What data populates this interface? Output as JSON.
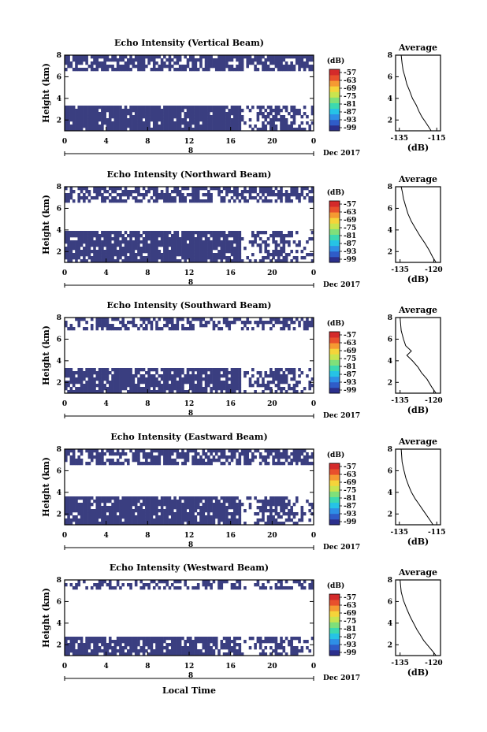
{
  "xlabel": "Local Time",
  "colorbar": {
    "unit": "(dB)",
    "ticks": [
      "-57",
      "-63",
      "-69",
      "-75",
      "-81",
      "-87",
      "-93",
      "-99"
    ],
    "colors": [
      "#2b2f8c",
      "#2f5cc8",
      "#2e8fe6",
      "#26c3e6",
      "#3cd9b0",
      "#7fe07a",
      "#c9e44f",
      "#f5d43a",
      "#f59a32",
      "#e8502c",
      "#d42a2a"
    ]
  },
  "data_color": "#3a3e80",
  "average_title": "Average",
  "average_xlabel": "(dB)",
  "chart_data": [
    {
      "type": "heatmap",
      "title": "Echo Intensity (Vertical Beam)",
      "ylabel": "Height (km)",
      "x_ticks": [
        "0",
        "4",
        "8",
        "12",
        "16",
        "20",
        "0"
      ],
      "date_label": "Dec 2017",
      "day_marker": "8",
      "xlim": [
        0,
        24
      ],
      "ylim": [
        1,
        8
      ],
      "y_ticks": [
        "8",
        "6",
        "4",
        "2"
      ],
      "layers": [
        {
          "low": 1.0,
          "high": 3.4,
          "density": 0.93
        },
        {
          "low": 6.6,
          "high": 8.0,
          "density": 0.75
        }
      ],
      "average": {
        "x_ticks": [
          "-135",
          "-115"
        ],
        "xlim": [
          -137,
          -113
        ],
        "ylim": [
          1,
          8
        ],
        "profile": [
          [
            -118,
            1.0
          ],
          [
            -119.5,
            1.4
          ],
          [
            -121,
            1.8
          ],
          [
            -123,
            2.3
          ],
          [
            -124.5,
            2.8
          ],
          [
            -126,
            3.4
          ],
          [
            -128,
            4.0
          ],
          [
            -129.5,
            4.7
          ],
          [
            -131,
            5.3
          ],
          [
            -132,
            6.0
          ],
          [
            -133,
            6.6
          ],
          [
            -133.5,
            7.2
          ],
          [
            -134,
            8.0
          ]
        ]
      }
    },
    {
      "type": "heatmap",
      "title": "Echo Intensity (Northward Beam)",
      "ylabel": "Height (km)",
      "x_ticks": [
        "0",
        "4",
        "8",
        "12",
        "16",
        "20",
        "0"
      ],
      "date_label": "Dec 2017",
      "day_marker": "8",
      "xlim": [
        0,
        24
      ],
      "ylim": [
        1,
        8
      ],
      "y_ticks": [
        "8",
        "6",
        "4",
        "2"
      ],
      "layers": [
        {
          "low": 1.0,
          "high": 3.8,
          "density": 0.88
        },
        {
          "low": 6.4,
          "high": 8.0,
          "density": 0.65
        }
      ],
      "average": {
        "x_ticks": [
          "-135",
          "-120"
        ],
        "xlim": [
          -137,
          -117
        ],
        "ylim": [
          1,
          8
        ],
        "profile": [
          [
            -119,
            1.0
          ],
          [
            -120.5,
            1.5
          ],
          [
            -122,
            2.1
          ],
          [
            -124,
            2.8
          ],
          [
            -126,
            3.4
          ],
          [
            -128,
            4.1
          ],
          [
            -130,
            4.8
          ],
          [
            -131.5,
            5.5
          ],
          [
            -132.5,
            6.2
          ],
          [
            -133.5,
            6.9
          ],
          [
            -134,
            7.5
          ],
          [
            -134.5,
            8.0
          ]
        ]
      }
    },
    {
      "type": "heatmap",
      "title": "Echo Intensity (Southward Beam)",
      "ylabel": "Height (km)",
      "x_ticks": [
        "0",
        "4",
        "8",
        "12",
        "16",
        "20",
        "0"
      ],
      "date_label": "Dec 2017",
      "day_marker": "8",
      "xlim": [
        0,
        24
      ],
      "ylim": [
        1,
        8
      ],
      "y_ticks": [
        "8",
        "6",
        "4",
        "2"
      ],
      "layers": [
        {
          "low": 1.0,
          "high": 3.3,
          "density": 0.85
        },
        {
          "low": 6.8,
          "high": 8.0,
          "density": 0.55
        }
      ],
      "average": {
        "x_ticks": [
          "-135",
          "-120"
        ],
        "xlim": [
          -137,
          -117
        ],
        "ylim": [
          1,
          8
        ],
        "profile": [
          [
            -119,
            1.0
          ],
          [
            -121,
            1.6
          ],
          [
            -123,
            2.3
          ],
          [
            -125.5,
            2.9
          ],
          [
            -127,
            3.4
          ],
          [
            -129.5,
            4.0
          ],
          [
            -132,
            4.5
          ],
          [
            -130,
            4.9
          ],
          [
            -132.5,
            5.4
          ],
          [
            -133.5,
            6.0
          ],
          [
            -134.5,
            6.8
          ],
          [
            -135,
            8.0
          ]
        ]
      }
    },
    {
      "type": "heatmap",
      "title": "Echo Intensity (Eastward Beam)",
      "ylabel": "Height (km)",
      "x_ticks": [
        "0",
        "4",
        "8",
        "12",
        "16",
        "20",
        "0"
      ],
      "date_label": "Dec 2017",
      "day_marker": "8",
      "xlim": [
        0,
        24
      ],
      "ylim": [
        1,
        8
      ],
      "y_ticks": [
        "8",
        "6",
        "4",
        "2"
      ],
      "layers": [
        {
          "low": 1.0,
          "high": 3.6,
          "density": 0.9
        },
        {
          "low": 6.6,
          "high": 8.0,
          "density": 0.7
        }
      ],
      "average": {
        "x_ticks": [
          "-135",
          "-115"
        ],
        "xlim": [
          -137,
          -113
        ],
        "ylim": [
          1,
          8
        ],
        "profile": [
          [
            -117,
            1.0
          ],
          [
            -118.5,
            1.4
          ],
          [
            -120.5,
            1.9
          ],
          [
            -122.5,
            2.4
          ],
          [
            -124.5,
            2.9
          ],
          [
            -126.5,
            3.4
          ],
          [
            -128.5,
            4.0
          ],
          [
            -130,
            4.6
          ],
          [
            -131.5,
            5.3
          ],
          [
            -132.5,
            6.0
          ],
          [
            -133.5,
            6.8
          ],
          [
            -134,
            8.0
          ]
        ]
      }
    },
    {
      "type": "heatmap",
      "title": "Echo Intensity (Westward Beam)",
      "ylabel": "Height (km)",
      "x_ticks": [
        "0",
        "4",
        "8",
        "12",
        "16",
        "20",
        "0"
      ],
      "date_label": "Dec 2017",
      "day_marker": "8",
      "xlim": [
        0,
        24
      ],
      "ylim": [
        1,
        8
      ],
      "y_ticks": [
        "8",
        "6",
        "4",
        "2"
      ],
      "layers": [
        {
          "low": 1.0,
          "high": 2.8,
          "density": 0.85
        },
        {
          "low": 7.0,
          "high": 8.0,
          "density": 0.45
        }
      ],
      "average": {
        "x_ticks": [
          "-135",
          "-120"
        ],
        "xlim": [
          -137,
          -117
        ],
        "ylim": [
          1,
          8
        ],
        "profile": [
          [
            -119,
            1.0
          ],
          [
            -120.5,
            1.4
          ],
          [
            -122.5,
            1.9
          ],
          [
            -124.5,
            2.4
          ],
          [
            -126,
            2.9
          ],
          [
            -127.5,
            3.4
          ],
          [
            -129,
            4.0
          ],
          [
            -130.5,
            4.6
          ],
          [
            -132,
            5.3
          ],
          [
            -133.5,
            6.1
          ],
          [
            -134.5,
            6.9
          ],
          [
            -135,
            8.0
          ]
        ]
      }
    }
  ]
}
